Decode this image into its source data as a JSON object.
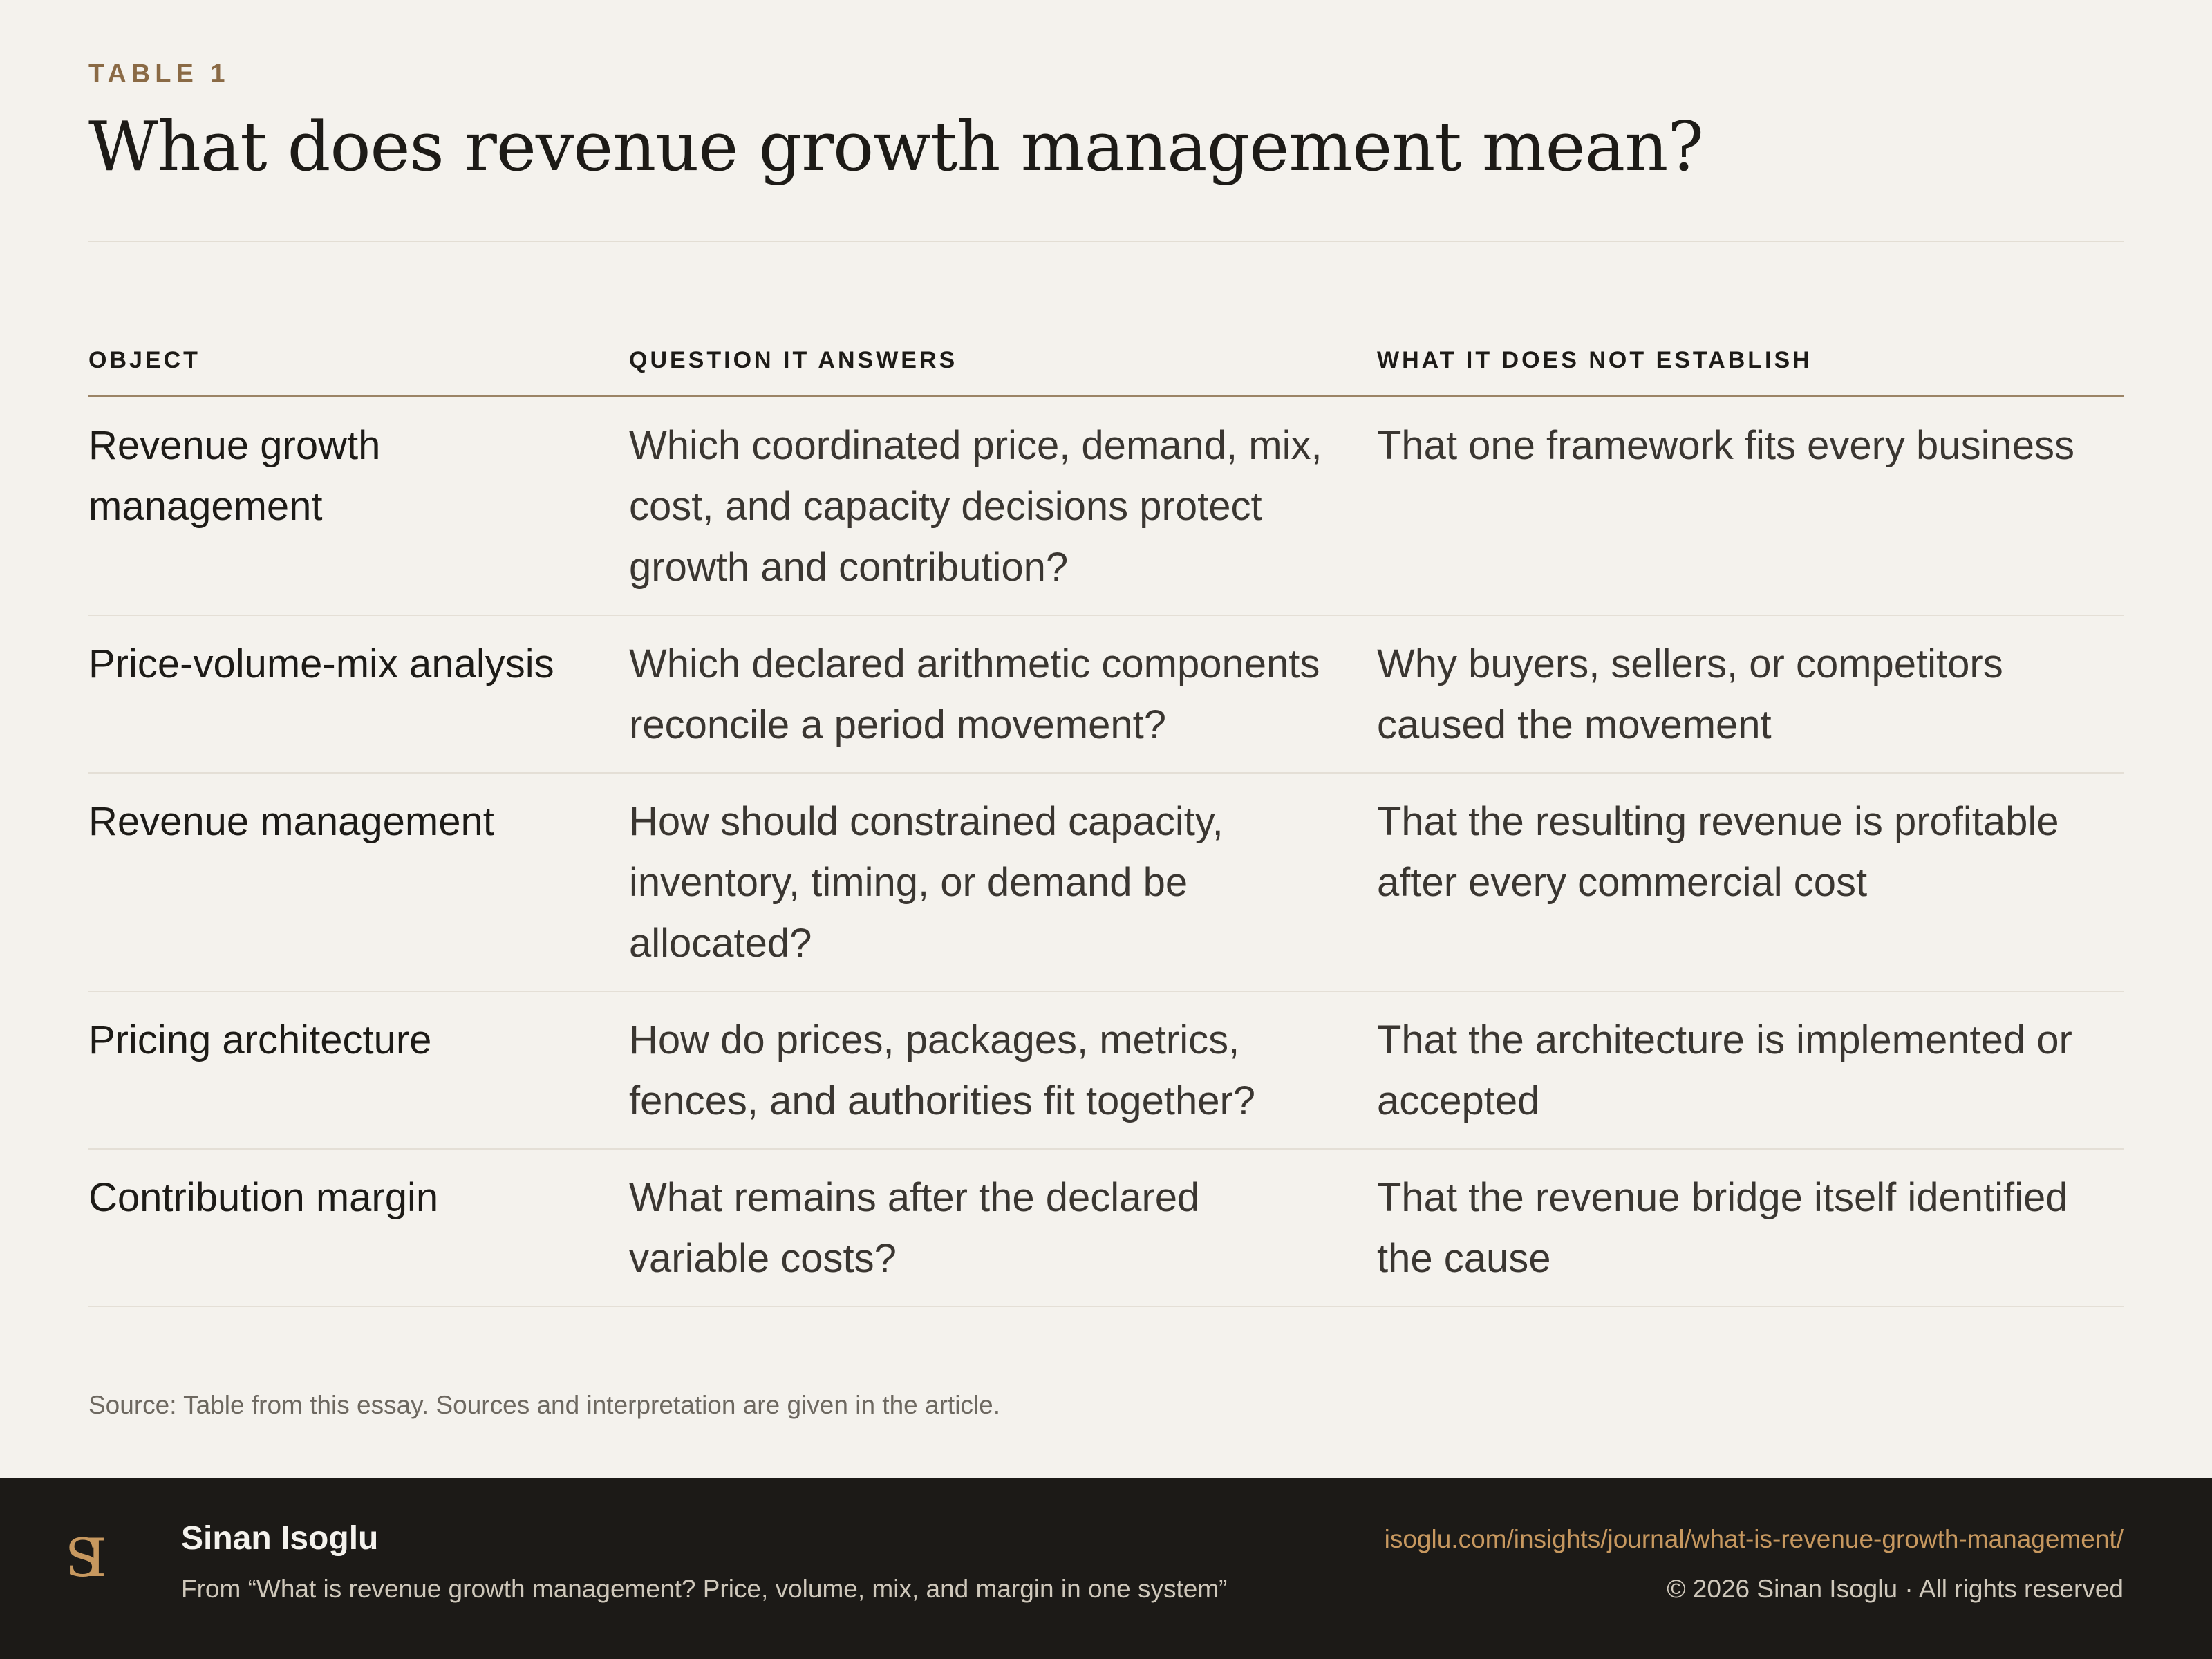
{
  "header": {
    "eyebrow": "TABLE 1",
    "title": "What does revenue growth management mean?"
  },
  "table": {
    "columns": [
      "OBJECT",
      "QUESTION IT ANSWERS",
      "WHAT IT DOES NOT ESTABLISH"
    ],
    "rows": [
      {
        "object": "Revenue growth management",
        "question": "Which coordinated price, demand, mix, cost, and capacity decisions protect growth and contribution?",
        "not_established": "That one framework fits every business"
      },
      {
        "object": "Price-volume-mix analysis",
        "question": "Which declared arithmetic components reconcile a period movement?",
        "not_established": "Why buyers, sellers, or competitors caused the movement"
      },
      {
        "object": "Revenue management",
        "question": "How should constrained capacity, inventory, timing, or demand be allocated?",
        "not_established": "That the resulting revenue is profitable after every commercial cost"
      },
      {
        "object": "Pricing architecture",
        "question": "How do prices, packages, metrics, fences, and authorities fit together?",
        "not_established": "That the architecture is implemented or accepted"
      },
      {
        "object": "Contribution margin",
        "question": "What remains after the declared variable costs?",
        "not_established": "That the revenue bridge itself identified the cause"
      }
    ]
  },
  "source": "Source: Table from this essay. Sources and interpretation are given in the article.",
  "footer": {
    "logo_icon": "si-monogram-icon",
    "logo_text": "SI",
    "author": "Sinan Isoglu",
    "from": "From “What is revenue growth management? Price, volume, mix, and margin in one system”",
    "url": "isoglu.com/insights/journal/what-is-revenue-growth-management/",
    "copyright": "© 2026 Sinan Isoglu · All rights reserved"
  },
  "colors": {
    "background": "#f4f2ed",
    "accent": "#8a6a45",
    "footer_bg": "#1c1a17",
    "link": "#c7985f"
  }
}
